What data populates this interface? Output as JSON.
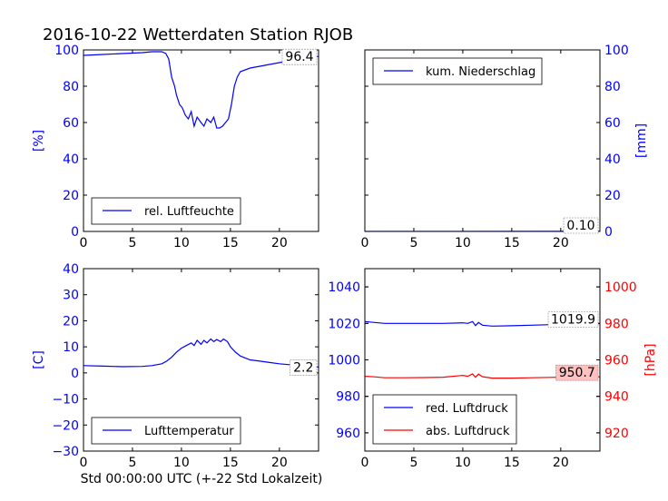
{
  "title": "2016-10-22 Wetterdaten Station RJOB",
  "xlabel": "Std 00:00:00 UTC (+-22 Std Lokalzeit)",
  "colors": {
    "blue": "#0000ff",
    "red": "#ff0000",
    "black": "#000000",
    "last_box_red_fill": "#ffc0c0"
  },
  "chart_data": [
    {
      "type": "line",
      "panel": "humidity",
      "ylabel": "[%]",
      "ylabel_color": "#0000ff",
      "axis_side": "left",
      "xlim": [
        0,
        24
      ],
      "ylim": [
        0,
        100
      ],
      "x_ticks": [
        "0",
        "5",
        "10",
        "15",
        "20"
      ],
      "y_ticks": [
        "0",
        "20",
        "40",
        "60",
        "80",
        "100"
      ],
      "legend": {
        "position": "lower-left"
      },
      "last_value_label": "96.4",
      "series": [
        {
          "name": "rel. Luftfeuchte",
          "color": "#0000ff",
          "x": [
            0,
            2,
            4,
            6,
            7,
            8,
            8.4,
            8.7,
            9,
            9.3,
            9.5,
            9.8,
            10.1,
            10.4,
            10.7,
            11,
            11.3,
            11.6,
            12,
            12.3,
            12.6,
            13,
            13.3,
            13.6,
            13.9,
            14.2,
            14.5,
            14.8,
            15.1,
            15.4,
            15.7,
            16,
            17,
            18,
            19,
            20,
            21,
            22,
            23,
            24
          ],
          "values": [
            97,
            97.5,
            98,
            98.5,
            99,
            99,
            98,
            95,
            85,
            80,
            75,
            70,
            68,
            64,
            62,
            66,
            58,
            63,
            60,
            58,
            62,
            60,
            63,
            57,
            57,
            58,
            60,
            62,
            70,
            80,
            85,
            88,
            90,
            91,
            92,
            93,
            94,
            95,
            96,
            96.4
          ]
        }
      ]
    },
    {
      "type": "line",
      "panel": "precipitation",
      "ylabel": "[mm]",
      "ylabel_color": "#0000ff",
      "axis_side": "right",
      "xlim": [
        0,
        24
      ],
      "ylim": [
        0,
        100
      ],
      "x_ticks": [
        "0",
        "5",
        "10",
        "15",
        "20"
      ],
      "y_ticks": [
        "0",
        "20",
        "40",
        "60",
        "80",
        "100"
      ],
      "legend": {
        "position": "upper-left"
      },
      "last_value_label": "0.10",
      "series": [
        {
          "name": "kum. Niederschlag",
          "color": "#0000ff",
          "x": [
            0,
            24
          ],
          "values": [
            0,
            0.1
          ]
        }
      ]
    },
    {
      "type": "line",
      "panel": "temperature",
      "ylabel": "[C]",
      "ylabel_color": "#0000ff",
      "axis_side": "left",
      "xlim": [
        0,
        24
      ],
      "ylim": [
        -30,
        40
      ],
      "x_ticks": [
        "0",
        "5",
        "10",
        "15",
        "20"
      ],
      "y_ticks": [
        "−30",
        "−20",
        "−10",
        "0",
        "10",
        "20",
        "30",
        "40"
      ],
      "legend": {
        "position": "lower-left"
      },
      "last_value_label": "2.2",
      "series": [
        {
          "name": "Lufttemperatur",
          "color": "#0000ff",
          "x": [
            0,
            2,
            4,
            6,
            7,
            8,
            8.5,
            9,
            9.5,
            10,
            10.5,
            11,
            11.3,
            11.6,
            12,
            12.3,
            12.6,
            13,
            13.3,
            13.6,
            14,
            14.3,
            14.7,
            15,
            15.5,
            16,
            17,
            18,
            19,
            20,
            22,
            24
          ],
          "values": [
            2.8,
            2.6,
            2.4,
            2.5,
            2.8,
            3.5,
            4.5,
            6,
            8,
            9.5,
            10.5,
            11.5,
            10.5,
            12.5,
            11,
            12.5,
            11.5,
            13,
            12,
            12.8,
            12,
            13,
            12,
            10,
            8,
            6.5,
            5,
            4.5,
            4,
            3.5,
            2.8,
            2.2
          ]
        }
      ]
    },
    {
      "type": "line",
      "panel": "pressure",
      "axis_side": "both",
      "xlim": [
        0,
        24
      ],
      "ylim": [
        950,
        1050
      ],
      "ylim_right": [
        910,
        1010
      ],
      "ylabel_right": "[hPa]",
      "ylabel_right_color": "#ff0000",
      "x_ticks": [
        "0",
        "5",
        "10",
        "15",
        "20"
      ],
      "y_ticks": [
        "960",
        "980",
        "1000",
        "1020",
        "1040"
      ],
      "y_ticks_right": [
        "920",
        "940",
        "960",
        "980",
        "1000"
      ],
      "legend": {
        "position": "lower-left"
      },
      "series": [
        {
          "name": "red. Luftdruck",
          "color": "#0000ff",
          "axis": "left",
          "last_value_label": "1019.9",
          "x": [
            0,
            1,
            2,
            4,
            6,
            8,
            10,
            10.5,
            11,
            11.3,
            11.6,
            12,
            13,
            15,
            17,
            19,
            21,
            24
          ],
          "values": [
            1021,
            1020.5,
            1020,
            1020,
            1020,
            1020,
            1020.3,
            1020,
            1021,
            1018.8,
            1020.5,
            1019,
            1018.5,
            1018.7,
            1019,
            1019.3,
            1019.6,
            1019.9
          ]
        },
        {
          "name": "abs. Luftdruck",
          "color": "#ff0000",
          "axis": "right",
          "last_value_label": "950.7",
          "x": [
            0,
            1,
            2,
            4,
            6,
            8,
            10,
            10.5,
            11,
            11.3,
            11.6,
            12,
            13,
            15,
            17,
            19,
            21,
            24
          ],
          "values": [
            951,
            950.7,
            950.2,
            950.2,
            950.3,
            950.5,
            951.5,
            951,
            952.3,
            950.5,
            952.2,
            950.8,
            950,
            950,
            950.2,
            950.4,
            950.6,
            950.7
          ]
        }
      ]
    }
  ]
}
